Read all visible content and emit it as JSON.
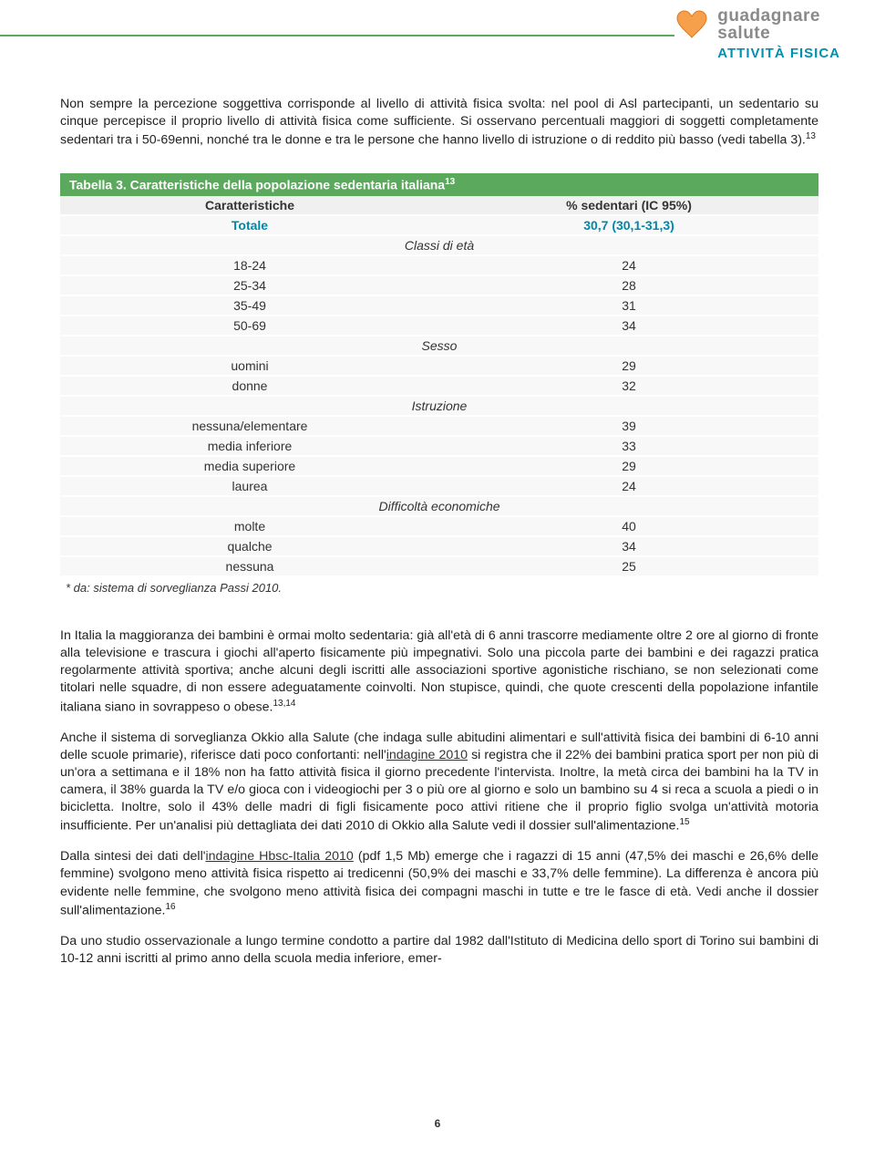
{
  "logo": {
    "line1": "guadagnare",
    "line2": "salute",
    "sub": "ATTIVITÀ FISICA"
  },
  "intro": {
    "p1": "Non sempre la percezione soggettiva corrisponde al livello di attività fisica svolta: nel pool di Asl partecipanti, un sedentario su cinque percepisce il proprio livello di attività fisica come sufficiente. Si osservano percentuali maggiori di soggetti completamente sedentari tra i 50-69enni, nonché tra le donne e tra le persone che hanno livello di istruzione o di reddito più basso (vedi tabella 3).",
    "p1_sup": "13"
  },
  "table": {
    "title_prefix": "Tabella 3. Caratteristiche della popolazione sedentaria italiana",
    "title_sup": "13",
    "head_c1": "Caratteristiche",
    "head_c2": "% sedentari (IC 95%)",
    "totale_c1": "Totale",
    "totale_c2": "30,7 (30,1-31,3)",
    "sections": [
      {
        "label": "Classi di età",
        "rows": [
          {
            "c1": "18-24",
            "c2": "24"
          },
          {
            "c1": "25-34",
            "c2": "28"
          },
          {
            "c1": "35-49",
            "c2": "31"
          },
          {
            "c1": "50-69",
            "c2": "34"
          }
        ]
      },
      {
        "label": "Sesso",
        "rows": [
          {
            "c1": "uomini",
            "c2": "29"
          },
          {
            "c1": "donne",
            "c2": "32"
          }
        ]
      },
      {
        "label": "Istruzione",
        "rows": [
          {
            "c1": "nessuna/elementare",
            "c2": "39"
          },
          {
            "c1": "media inferiore",
            "c2": "33"
          },
          {
            "c1": "media superiore",
            "c2": "29"
          },
          {
            "c1": "laurea",
            "c2": "24"
          }
        ]
      },
      {
        "label": "Difficoltà economiche",
        "rows": [
          {
            "c1": "molte",
            "c2": "40"
          },
          {
            "c1": "qualche",
            "c2": "34"
          },
          {
            "c1": "nessuna",
            "c2": "25"
          }
        ]
      }
    ],
    "foot": "* da: sistema di sorveglianza Passi 2010."
  },
  "body": {
    "p2a": "In Italia la maggioranza dei bambini è ormai molto sedentaria: già all'età di 6 anni trascorre mediamente oltre 2 ore al giorno di fronte alla televisione e trascura i giochi all'aperto fisicamente più impegnativi. Solo una piccola parte dei bambini e dei ragazzi pratica regolarmente attività sportiva; anche alcuni degli iscritti alle associazioni sportive agonistiche rischiano, se non selezionati come titolari nelle squadre, di non essere adeguatamente coinvolti. Non stupisce, quindi, che quote crescenti della popolazione infantile italiana siano in sovrappeso o obese.",
    "p2_sup": "13,14",
    "p3a": "Anche il sistema di sorveglianza Okkio alla Salute (che indaga sulle abitudini alimentari e sull'attività fisica dei bambini di 6-10 anni delle scuole primarie), riferisce dati poco confortanti: nell'",
    "p3_link1": "indagine 2010",
    "p3b": " si registra che il 22% dei bambini pratica sport per non più di un'ora a settimana e il 18% non ha fatto attività fisica il giorno precedente l'intervista. Inoltre, la metà circa dei bambini ha la TV in camera, il 38% guarda la TV e/o gioca con i videogiochi per 3 o più ore al giorno e solo un bambino su 4 si reca a scuola a piedi o in bicicletta. Inoltre, solo il 43% delle madri di figli fisicamente poco attivi ritiene che il proprio figlio svolga un'attività motoria insufficiente. Per un'analisi più dettagliata dei dati 2010 di Okkio alla Salute vedi il dossier sull'alimentazione.",
    "p3_sup": "15",
    "p4a": "Dalla sintesi dei dati dell'",
    "p4_link1": "indagine Hbsc-Italia 2010",
    "p4b": " (pdf 1,5 Mb) emerge che i ragazzi di 15 anni (47,5% dei maschi e 26,6% delle femmine) svolgono meno attività fisica rispetto ai tredicenni (50,9% dei maschi e 33,7% delle femmine). La differenza è ancora più evidente nelle femmine, che svolgono meno attività fisica dei compagni maschi in tutte e tre le fasce di età. Vedi anche il dossier sull'alimentazione.",
    "p4_sup": "16",
    "p5": "Da uno studio osservazionale a lungo termine condotto a partire dal 1982 dall'Istituto di Medicina dello sport di Torino sui bambini di 10-12 anni iscritti al primo anno della scuola media inferiore, emer-"
  },
  "page_num": "6",
  "colors": {
    "green": "#5ba95c",
    "teal": "#0088aa",
    "gray": "#8a8a8a",
    "orange": "#f08030"
  }
}
